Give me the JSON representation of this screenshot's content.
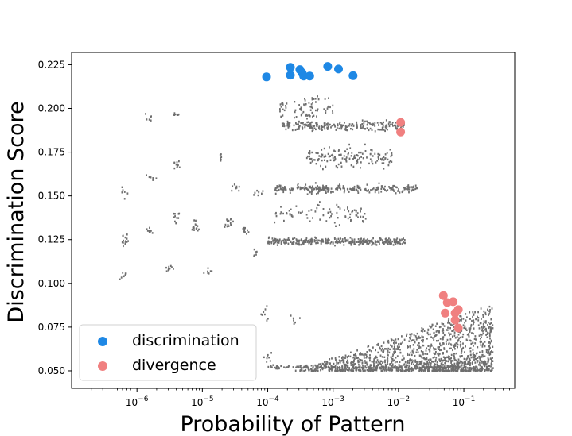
{
  "chart_data": {
    "type": "scatter",
    "title": "",
    "xlabel": "Probability of Pattern",
    "ylabel": "Discrimination Score",
    "xscale": "log",
    "xlim": [
      1e-07,
      0.6
    ],
    "ylim": [
      0.04,
      0.232
    ],
    "xticks": [
      {
        "value": 1e-06,
        "base": "10",
        "exp": "−6"
      },
      {
        "value": 1e-05,
        "base": "10",
        "exp": "−5"
      },
      {
        "value": 0.0001,
        "base": "10",
        "exp": "−4"
      },
      {
        "value": 0.001,
        "base": "10",
        "exp": "−3"
      },
      {
        "value": 0.01,
        "base": "10",
        "exp": "−2"
      },
      {
        "value": 0.1,
        "base": "10",
        "exp": "−1"
      }
    ],
    "yticks": [
      0.05,
      0.075,
      0.1,
      0.125,
      0.15,
      0.175,
      0.2,
      0.225
    ],
    "ytick_labels": [
      "0.050",
      "0.075",
      "0.100",
      "0.125",
      "0.150",
      "0.175",
      "0.200",
      "0.225"
    ],
    "grid": false,
    "legend_position": "lower-left",
    "series": [
      {
        "name": "discrimination",
        "color": "#1e88e5",
        "points": [
          [
            9.58e-05,
            0.218
          ],
          [
            0.000222,
            0.2235
          ],
          [
            0.000222,
            0.219
          ],
          [
            0.00031,
            0.2222
          ],
          [
            0.000336,
            0.2203
          ],
          [
            0.000355,
            0.2185
          ],
          [
            0.000439,
            0.2185
          ],
          [
            0.000827,
            0.224
          ],
          [
            0.00121,
            0.2225
          ],
          [
            0.00202,
            0.2187
          ]
        ]
      },
      {
        "name": "divergence",
        "color": "#f08080",
        "points": [
          [
            0.0108,
            0.192
          ],
          [
            0.0108,
            0.1865
          ],
          [
            0.0486,
            0.093
          ],
          [
            0.0557,
            0.089
          ],
          [
            0.0686,
            0.0895
          ],
          [
            0.0824,
            0.085
          ],
          [
            0.0735,
            0.083
          ],
          [
            0.0519,
            0.083
          ],
          [
            0.0735,
            0.079
          ],
          [
            0.0824,
            0.0745
          ]
        ]
      }
    ],
    "background_series": {
      "name": "",
      "color": "#6e6e6e",
      "note_regions": "unlabeled gray pattern points (dense cloud)"
    }
  },
  "legend": {
    "items": [
      {
        "label": "discrimination",
        "color": "#1e88e5"
      },
      {
        "label": "divergence",
        "color": "#f08080"
      }
    ]
  }
}
